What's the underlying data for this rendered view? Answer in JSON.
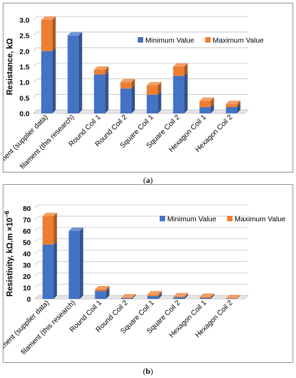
{
  "chart_data": [
    {
      "type": "bar",
      "stacked": true,
      "ylabel": "Resistance, kΩ",
      "ylim": [
        0,
        3.0
      ],
      "ytick_step": 0.5,
      "ytick_decimals": 1,
      "categories": [
        "Filament (supplier data)",
        "filament (this research)",
        "Round Coil 1",
        "Round Coil 2",
        "Square Coil 1",
        "Square Coil 2",
        "Hexagon Coil 1",
        "Hexagon Coil 2"
      ],
      "series": [
        {
          "name": "Minimum Value",
          "color": "#4472C4",
          "values": [
            2.0,
            2.5,
            1.25,
            0.8,
            0.6,
            1.2,
            0.2,
            0.2
          ]
        },
        {
          "name": "Maximum Value",
          "color": "#ED7D31",
          "values": [
            1.0,
            0.0,
            0.15,
            0.2,
            0.3,
            0.3,
            0.2,
            0.1
          ]
        }
      ],
      "legend_position": "top-right",
      "grid": true,
      "caption": "a"
    },
    {
      "type": "bar",
      "stacked": true,
      "ylabel": "Resistivity, kΩ.m ×10",
      "ylabel_superscript": "−6",
      "ylim": [
        0,
        80
      ],
      "ytick_step": 10,
      "ytick_decimals": 0,
      "categories": [
        "Filament (supplier data)",
        "filament (this research)",
        "Round Coil 1",
        "Round Coil 2",
        "Square Coil 1",
        "Square Coil 2",
        "Hexagon Coil 1",
        "Hexagon Coil 2"
      ],
      "series": [
        {
          "name": "Minimum Value",
          "color": "#4472C4",
          "values": [
            48,
            60,
            7,
            0.8,
            2.5,
            1.5,
            1.0,
            0.3
          ]
        },
        {
          "name": "Maximum Value",
          "color": "#ED7D31",
          "values": [
            25,
            0,
            1.5,
            0.5,
            1.5,
            0.8,
            0.8,
            0.3
          ]
        }
      ],
      "legend_position": "top-right",
      "grid": true,
      "caption": "b"
    }
  ],
  "captions": {
    "a": "(a)",
    "b": "(b)"
  }
}
